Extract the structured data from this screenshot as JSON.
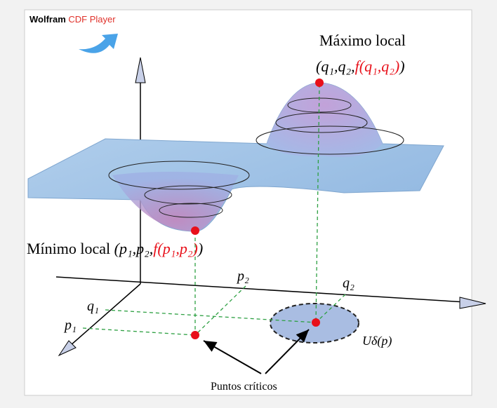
{
  "header": {
    "brand": "Wolfram",
    "product": "CDF Player"
  },
  "labels": {
    "max_title": "Máximo local",
    "max_coords": {
      "open": "(q₁,q₂,",
      "func": "f(q₁,q₂)",
      "close": ")"
    },
    "min_title": "Mínimo local",
    "min_coords": {
      "open": "(p₁,p₂,",
      "func": "f(p₁,p₂)",
      "close": ")"
    },
    "p2": "p₂",
    "q2": "q₂",
    "q1": "q₁",
    "p1": "p₁",
    "neighborhood": "Uδ(p)",
    "critical_points": "Puntos críticos"
  }
}
